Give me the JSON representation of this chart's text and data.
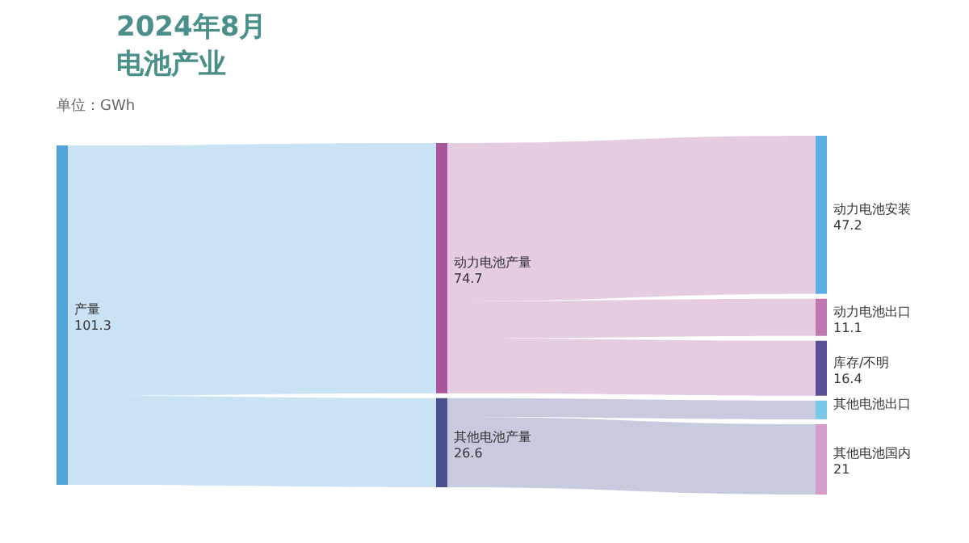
{
  "chart_data": {
    "type": "other",
    "title": "2024年8月",
    "subtitle": "电池产业",
    "annotations": [
      "单位：GWh"
    ],
    "categories": [
      "产量",
      "动力电池产量",
      "其他电池产量",
      "动力电池安装",
      "动力电池出口",
      "库存/不明",
      "其他电池出口",
      "其他电池国内"
    ],
    "values": [
      101.3,
      74.7,
      26.6,
      47.2,
      11.1,
      16.4,
      null,
      21
    ],
    "colors": [
      "#4fa3d9",
      "#a8559a",
      "#4a4f8f",
      "#5aaee0",
      "#c078b0",
      "#5a4f96",
      "#7ac8e8",
      "#d49cc8"
    ],
    "data_labels": true
  }
}
